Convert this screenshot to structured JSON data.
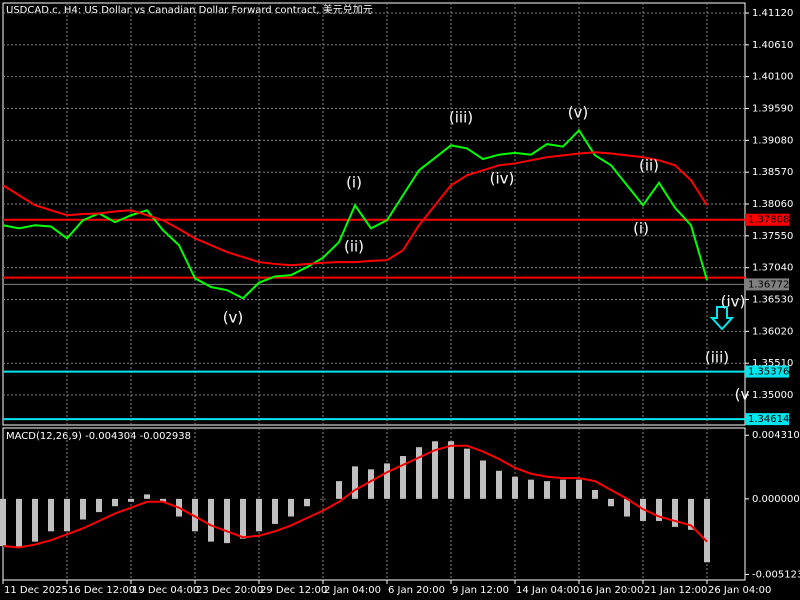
{
  "chart_data": [
    {
      "type": "line",
      "title": "USDCAD.c, H4:  US Dollar vs Canadian Dollar Forward contract, 美元兑加元",
      "categories": [
        "11 Dec 2025",
        null,
        null,
        null,
        "16 Dec 12:00",
        null,
        null,
        null,
        "19 Dec 04:00",
        null,
        null,
        null,
        "23 Dec 20:00",
        null,
        null,
        null,
        "29 Dec 12:00",
        null,
        null,
        null,
        "2 Jan 04:00",
        null,
        null,
        null,
        "6 Jan 20:00",
        null,
        null,
        null,
        "9 Jan 12:00",
        null,
        null,
        null,
        "14 Jan 04:00",
        null,
        null,
        null,
        "16 Jan 20:00",
        null,
        null,
        null,
        "21 Jan 12:00",
        null,
        null,
        null,
        "26 Jan 04:00"
      ],
      "series": [
        {
          "color": "#00ff00",
          "values": [
            1.3772,
            1.3767,
            1.3772,
            1.377,
            1.3751,
            1.378,
            1.3791,
            1.3777,
            1.3788,
            1.3796,
            1.3764,
            1.374,
            1.3687,
            1.3673,
            1.3668,
            1.3655,
            1.368,
            1.369,
            1.3692,
            1.3705,
            1.372,
            1.3745,
            1.3804,
            1.3767,
            1.378,
            1.382,
            1.386,
            1.388,
            1.39,
            1.3895,
            1.3878,
            1.3885,
            1.3888,
            1.3885,
            1.3902,
            1.3898,
            1.3924,
            1.3884,
            1.3868,
            1.3836,
            1.3804,
            1.384,
            1.38,
            1.3772,
            1.3684
          ]
        },
        {
          "color": "#ff0000",
          "values": [
            1.3836,
            1.382,
            1.3804,
            1.3796,
            1.3788,
            1.379,
            1.3791,
            1.3794,
            1.3796,
            1.3788,
            1.378,
            1.3766,
            1.3751,
            1.374,
            1.3729,
            1.3721,
            1.3713,
            1.371,
            1.3708,
            1.371,
            1.3712,
            1.3713,
            1.3713,
            1.3715,
            1.3716,
            1.3732,
            1.3772,
            1.3804,
            1.3836,
            1.3852,
            1.386,
            1.3868,
            1.3871,
            1.3876,
            1.3881,
            1.3884,
            1.3887,
            1.3889,
            1.3887,
            1.3884,
            1.3881,
            1.3876,
            1.3868,
            1.3844,
            1.3804
          ]
        }
      ],
      "ylim": [
        1.3452,
        1.4128
      ],
      "yticks": [
        {
          "value": 1.4112,
          "label": "1.41120"
        },
        {
          "value": 1.4061,
          "label": "1.40610"
        },
        {
          "value": 1.401,
          "label": "1.40100"
        },
        {
          "value": 1.3959,
          "label": "1.39590"
        },
        {
          "value": 1.3908,
          "label": "1.39080"
        },
        {
          "value": 1.3857,
          "label": "1.38570"
        },
        {
          "value": 1.3806,
          "label": "1.38060"
        },
        {
          "value": 1.3755,
          "label": "1.37550"
        },
        {
          "value": 1.3704,
          "label": "1.37040"
        },
        {
          "value": 1.3653,
          "label": "1.36530"
        },
        {
          "value": 1.3602,
          "label": "1.36020"
        },
        {
          "value": 1.3551,
          "label": "1.35510"
        },
        {
          "value": 1.35,
          "label": "1.35000"
        }
      ],
      "grid": true,
      "levels": [
        {
          "value": 1.37808,
          "color": "#ff0000",
          "label_shown": true
        },
        {
          "value": 1.3688,
          "color": "#ff0000",
          "label_shown": false
        },
        {
          "value": 1.36772,
          "color": "#808080",
          "label_shown": true
        },
        {
          "value": 1.35376,
          "color": "#00e5ee",
          "label_shown": true
        },
        {
          "value": 1.34614,
          "color": "#00e5ee",
          "label_shown": true
        }
      ],
      "annotations": [
        "(v)",
        "(i)",
        "(ii)",
        "(iii)",
        "(iv)",
        "(v)",
        "(ii)",
        "(i)",
        "(iv)",
        "(iii)",
        "(v"
      ]
    },
    {
      "type": "bar",
      "title": "MACD(12,26,9) -0.004304 -0.002938",
      "series": [
        {
          "color": "#c0c0c0",
          "values": [
            -0.0032,
            -0.0033,
            -0.0029,
            -0.0022,
            -0.0022,
            -0.0014,
            -0.0009,
            -0.0005,
            -0.0002,
            0.0003,
            -0.0002,
            -0.0012,
            -0.0022,
            -0.0029,
            -0.003,
            -0.0027,
            -0.0022,
            -0.0017,
            -0.0012,
            -0.0005,
            0,
            0.0012,
            0.0022,
            0.002,
            0.0024,
            0.0029,
            0.0035,
            0.0039,
            0.0039,
            0.0034,
            0.0026,
            0.0019,
            0.0015,
            0.0013,
            0.0012,
            0.0013,
            0.0013,
            0.0006,
            -0.0005,
            -0.0012,
            -0.0015,
            -0.0015,
            -0.0019,
            -0.0021,
            -0.0043
          ]
        },
        {
          "type": "line",
          "color": "#ff0000",
          "values": [
            -0.0032,
            -0.0033,
            -0.0031,
            -0.0028,
            -0.0024,
            -0.002,
            -0.0015,
            -0.001,
            -0.0006,
            -0.0002,
            -0.0002,
            -0.0006,
            -0.0012,
            -0.0018,
            -0.0022,
            -0.0026,
            -0.0025,
            -0.0022,
            -0.0018,
            -0.0013,
            -0.0008,
            -0.0002,
            0.0006,
            0.0012,
            0.0018,
            0.0023,
            0.0028,
            0.0033,
            0.0036,
            0.0036,
            0.0032,
            0.0027,
            0.0021,
            0.0017,
            0.0015,
            0.0014,
            0.0014,
            0.0012,
            0.0006,
            0,
            -0.0007,
            -0.0012,
            -0.0015,
            -0.0018,
            -0.0029
          ]
        }
      ],
      "ylim": [
        -0.0055,
        0.0048
      ],
      "yticks": [
        {
          "value": 0.00431,
          "label": "0.004310"
        },
        {
          "value": 0,
          "label": "0.000000"
        },
        {
          "value": -0.005123,
          "label": "-0.005123"
        }
      ]
    }
  ]
}
